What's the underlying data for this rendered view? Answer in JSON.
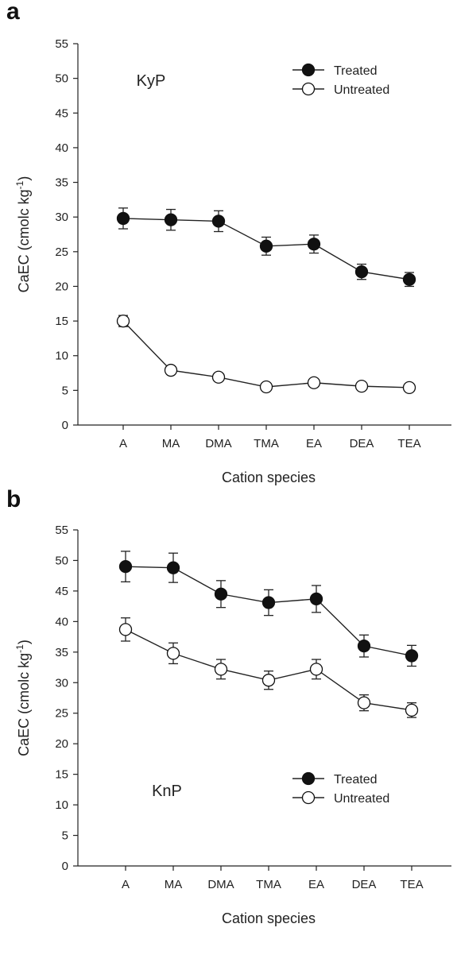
{
  "chart_data": [
    {
      "panel": "a",
      "type": "line",
      "annotation": "KyP",
      "categories": [
        "A",
        "MA",
        "DMA",
        "TMA",
        "EA",
        "DEA",
        "TEA"
      ],
      "series": [
        {
          "name": "Treated",
          "marker": "filled-circle",
          "values": [
            29.8,
            29.6,
            29.4,
            25.8,
            26.1,
            22.1,
            21.0
          ],
          "errors": [
            1.5,
            1.5,
            1.5,
            1.3,
            1.3,
            1.1,
            1.0
          ]
        },
        {
          "name": "Untreated",
          "marker": "open-circle",
          "values": [
            15.0,
            7.9,
            6.9,
            5.5,
            6.1,
            5.6,
            5.4
          ],
          "errors": [
            0.8,
            0.4,
            0.3,
            0.3,
            0.3,
            0.3,
            0.3
          ]
        }
      ],
      "xlabel": "Cation species",
      "ylabel": "CaEC (cmolc kg",
      "ylabel_sup": "-1",
      "ylabel_end": ")",
      "ylim": [
        0,
        55
      ],
      "yticks": [
        0,
        5,
        10,
        15,
        20,
        25,
        30,
        35,
        40,
        45,
        50,
        55
      ],
      "legend_position": "top-right",
      "grid": false
    },
    {
      "panel": "b",
      "type": "line",
      "annotation": "KnP",
      "categories": [
        "A",
        "MA",
        "DMA",
        "TMA",
        "EA",
        "DEA",
        "TEA"
      ],
      "series": [
        {
          "name": "Treated",
          "marker": "filled-circle",
          "values": [
            49.0,
            48.8,
            44.5,
            43.1,
            43.7,
            36.0,
            34.4
          ],
          "errors": [
            2.5,
            2.4,
            2.2,
            2.1,
            2.2,
            1.8,
            1.7
          ]
        },
        {
          "name": "Untreated",
          "marker": "open-circle",
          "values": [
            38.7,
            34.8,
            32.2,
            30.4,
            32.2,
            26.7,
            25.5
          ],
          "errors": [
            1.9,
            1.7,
            1.6,
            1.5,
            1.6,
            1.3,
            1.2
          ]
        }
      ],
      "xlabel": "Cation species",
      "ylabel": "CaEC (cmolc kg",
      "ylabel_sup": "-1",
      "ylabel_end": ")",
      "ylim": [
        0,
        55
      ],
      "yticks": [
        0,
        5,
        10,
        15,
        20,
        25,
        30,
        35,
        40,
        45,
        50,
        55
      ],
      "legend_position": "bottom-right",
      "grid": false
    }
  ],
  "panel_labels": {
    "a": "a",
    "b": "b"
  }
}
